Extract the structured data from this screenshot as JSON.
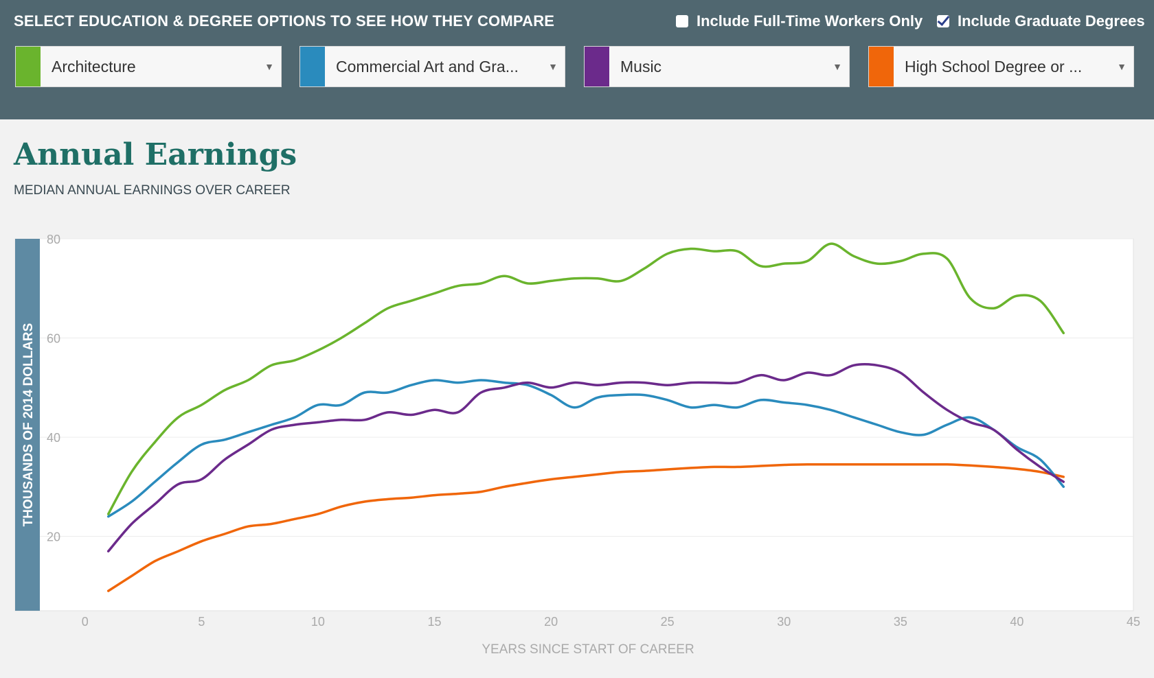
{
  "header": {
    "heading": "SELECT EDUCATION & DEGREE OPTIONS TO SEE HOW THEY COMPARE",
    "options": [
      {
        "label": "Include Full-Time Workers Only",
        "checked": false
      },
      {
        "label": "Include Graduate Degrees",
        "checked": true
      }
    ]
  },
  "dropdowns": [
    {
      "label": "Architecture",
      "color": "#6ab42d"
    },
    {
      "label": "Commercial Art and Gra...",
      "color": "#2a8bbd"
    },
    {
      "label": "Music",
      "color": "#6b2a8b"
    },
    {
      "label": "High School Degree or ...",
      "color": "#f0660a"
    }
  ],
  "chart": {
    "title": "Annual Earnings",
    "subtitle": "MEDIAN ANNUAL EARNINGS OVER CAREER"
  },
  "chart_data": {
    "type": "line",
    "title": "Annual Earnings",
    "subtitle": "MEDIAN ANNUAL EARNINGS OVER CAREER",
    "xlabel": "YEARS SINCE START OF CAREER",
    "ylabel": "THOUSANDS OF 2014 DOLLARS",
    "xlim": [
      -3,
      45
    ],
    "ylim": [
      5,
      80
    ],
    "x_ticks": [
      0,
      5,
      10,
      15,
      20,
      25,
      30,
      35,
      40,
      45
    ],
    "y_ticks": [
      20,
      40,
      60,
      80
    ],
    "grid": true,
    "x": [
      1,
      2,
      3,
      4,
      5,
      6,
      7,
      8,
      9,
      10,
      11,
      12,
      13,
      14,
      15,
      16,
      17,
      18,
      19,
      20,
      21,
      22,
      23,
      24,
      25,
      26,
      27,
      28,
      29,
      30,
      31,
      32,
      33,
      34,
      35,
      36,
      37,
      38,
      39,
      40,
      41,
      42
    ],
    "series": [
      {
        "name": "Architecture",
        "color": "#6ab42d",
        "values": [
          24.5,
          33,
          39,
          44,
          46.5,
          49.5,
          51.5,
          54.5,
          55.5,
          57.5,
          60,
          63,
          66,
          67.5,
          69,
          70.5,
          71,
          72.5,
          71,
          71.5,
          72,
          72,
          71.5,
          74,
          77,
          78,
          77.5,
          77.5,
          74.5,
          75,
          75.5,
          79,
          76.5,
          75,
          75.5,
          77,
          76,
          68,
          66,
          68.5,
          67.5,
          61
        ]
      },
      {
        "name": "Commercial Art and Gra...",
        "color": "#2a8bbd",
        "values": [
          24,
          27,
          31,
          35,
          38.5,
          39.5,
          41,
          42.5,
          44,
          46.5,
          46.5,
          49,
          49,
          50.5,
          51.5,
          51,
          51.5,
          51,
          50.5,
          48.5,
          46,
          48,
          48.5,
          48.5,
          47.5,
          46,
          46.5,
          46,
          47.5,
          47,
          46.5,
          45.5,
          44,
          42.5,
          41,
          40.5,
          42.5,
          44,
          41.5,
          38,
          35.5,
          30
        ]
      },
      {
        "name": "Music",
        "color": "#6b2a8b",
        "values": [
          17,
          22.5,
          26.5,
          30.5,
          31.5,
          35.5,
          38.5,
          41.5,
          42.5,
          43,
          43.5,
          43.5,
          45,
          44.5,
          45.5,
          45,
          49,
          50,
          51,
          50,
          51,
          50.5,
          51,
          51,
          50.5,
          51,
          51,
          51,
          52.5,
          51.5,
          53,
          52.5,
          54.5,
          54.5,
          53,
          49,
          45.5,
          43,
          41.5,
          37.5,
          34,
          31
        ]
      },
      {
        "name": "High School Degree or ...",
        "color": "#f0660a",
        "values": [
          9,
          12,
          15,
          17,
          19,
          20.5,
          22,
          22.5,
          23.5,
          24.5,
          26,
          27,
          27.5,
          27.8,
          28.3,
          28.6,
          29,
          30,
          30.8,
          31.5,
          32,
          32.5,
          33,
          33.2,
          33.5,
          33.8,
          34,
          34,
          34.2,
          34.4,
          34.5,
          34.5,
          34.5,
          34.5,
          34.5,
          34.5,
          34.5,
          34.3,
          34,
          33.6,
          33,
          32
        ]
      }
    ]
  }
}
